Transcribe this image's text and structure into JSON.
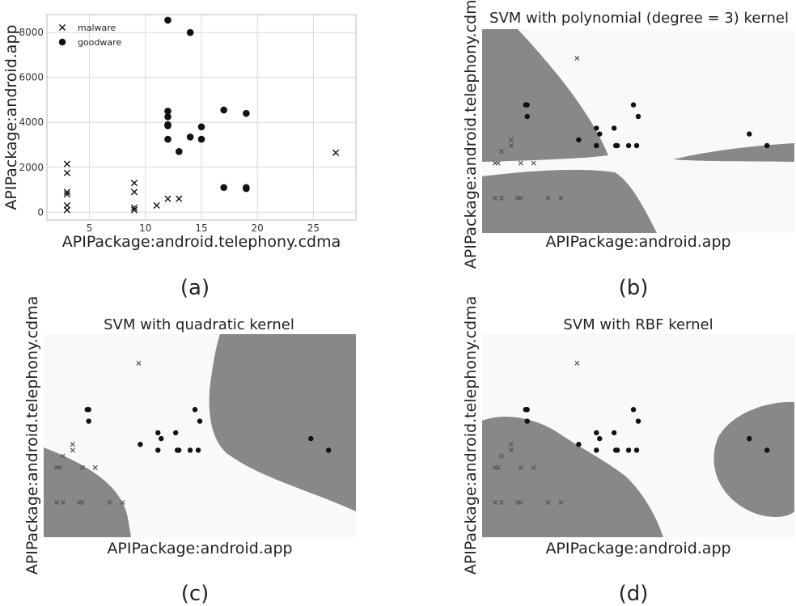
{
  "chart_data": [
    {
      "id": "a",
      "type": "scatter",
      "panel_label": "(a)",
      "title": "",
      "xlabel": "APIPackage:android.telephony.cdma",
      "ylabel": "APIPackage:android.app",
      "xlim": [
        1.2,
        28.8
      ],
      "ylim": [
        -350,
        8800
      ],
      "xticks": [
        5,
        10,
        15,
        20,
        25
      ],
      "yticks": [
        0,
        2000,
        4000,
        6000,
        8000
      ],
      "grid": true,
      "legend_position": "top-left",
      "series": [
        {
          "name": "malware",
          "marker": "x",
          "points": [
            [
              3,
              2150
            ],
            [
              3,
              1750
            ],
            [
              3,
              900
            ],
            [
              3,
              800
            ],
            [
              3,
              300
            ],
            [
              3,
              100
            ],
            [
              9,
              1300
            ],
            [
              9,
              900
            ],
            [
              9,
              200
            ],
            [
              9,
              100
            ],
            [
              11,
              300
            ],
            [
              12,
              600
            ],
            [
              13,
              600
            ],
            [
              27,
              2650
            ]
          ]
        },
        {
          "name": "goodware",
          "marker": "circle",
          "points": [
            [
              12,
              8550
            ],
            [
              14,
              8000
            ],
            [
              12,
              4500
            ],
            [
              12,
              4250
            ],
            [
              12,
              3900
            ],
            [
              12,
              3850
            ],
            [
              12,
              3250
            ],
            [
              13,
              2700
            ],
            [
              14,
              3350
            ],
            [
              15,
              3800
            ],
            [
              15,
              3250
            ],
            [
              17,
              4550
            ],
            [
              19,
              4400
            ],
            [
              17,
              1100
            ],
            [
              19,
              1100
            ],
            [
              19,
              1050
            ]
          ]
        }
      ]
    },
    {
      "id": "b",
      "type": "scatter",
      "panel_label": "(b)",
      "title": "SVM with polynomial (degree = 3) kernel",
      "xlabel": "APIPackage:android.app",
      "ylabel": "APIPackage:android.telephony.cdma",
      "region_colors": {
        "malware": "#888888",
        "goodware": "#f9f9f9"
      },
      "point_color_goodware": "#111111",
      "point_color_malware": "#555555"
    },
    {
      "id": "c",
      "type": "scatter",
      "panel_label": "(c)",
      "title": "SVM with quadratic kernel",
      "xlabel": "APIPackage:android.app",
      "ylabel": "APIPackage:android.telephony.cdma",
      "region_colors": {
        "malware": "#888888",
        "goodware": "#f9f9f9"
      }
    },
    {
      "id": "d",
      "type": "scatter",
      "panel_label": "(d)",
      "title": "SVM with RBF kernel",
      "xlabel": "APIPackage:android.app",
      "ylabel": "APIPackage:android.telephony.cdma",
      "region_colors": {
        "malware": "#888888",
        "goodware": "#f9f9f9"
      }
    }
  ]
}
